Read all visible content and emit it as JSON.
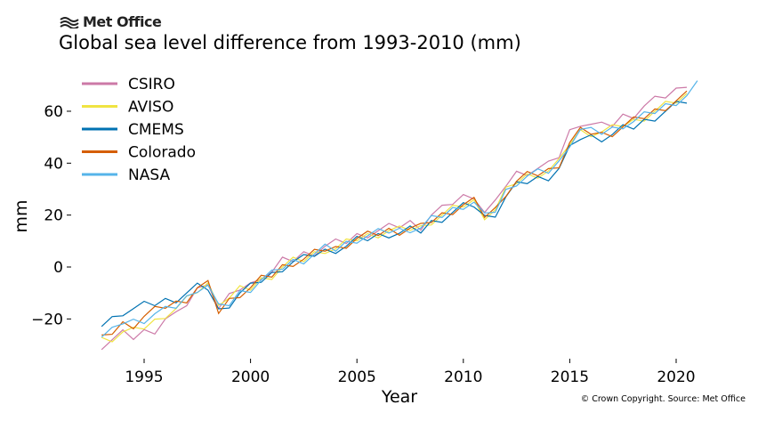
{
  "header": {
    "brand": "Met Office",
    "title": "Global sea level difference from 1993-2010 (mm)"
  },
  "footer": {
    "copyright": "© Crown Copyright. Source: Met Office"
  },
  "chart_data": {
    "type": "line",
    "title": "Global sea level difference from 1993-2010 (mm)",
    "xlabel": "Year",
    "ylabel": "mm",
    "xlim": [
      1992.5,
      2022
    ],
    "ylim": [
      -35,
      75
    ],
    "xticks": [
      "1995",
      "2000",
      "2005",
      "2010",
      "2015",
      "2020"
    ],
    "yticks": [
      "−20",
      "0",
      "20",
      "40",
      "60"
    ],
    "grid": false,
    "legend": "top-left",
    "x_start": 1993,
    "x_step": 0.5,
    "series": [
      {
        "name": "CSIRO",
        "color": "#cc79a7",
        "values": [
          -30,
          -28,
          -26,
          -27,
          -25,
          -24,
          -20,
          -19,
          -14,
          -9,
          -5,
          -16,
          -12,
          -8,
          -7,
          -3,
          -2,
          2,
          3,
          5,
          6,
          8,
          9,
          10,
          12,
          13,
          14,
          15,
          16,
          17,
          16,
          20,
          22,
          25,
          27,
          28,
          21,
          24,
          32,
          36,
          37,
          38,
          39,
          43,
          52,
          56,
          55,
          54,
          55,
          58,
          59,
          62,
          64,
          66,
          68,
          71
        ]
      },
      {
        "name": "AVISO",
        "color": "#f0e442",
        "values": [
          -28,
          -27,
          -25,
          -25,
          -23,
          -21,
          -18,
          -16,
          -13,
          -9,
          -7,
          -13,
          -12,
          -9,
          -8,
          -5,
          -3,
          0,
          2,
          3,
          5,
          7,
          7,
          9,
          11,
          12,
          13,
          14,
          14,
          15,
          15,
          18,
          20,
          22,
          24,
          25,
          20,
          22,
          29,
          33,
          35,
          36,
          37,
          40,
          48,
          52,
          52,
          52,
          53,
          55,
          56,
          58,
          60,
          62,
          64,
          66
        ]
      },
      {
        "name": "CMEMS",
        "color": "#0072b2",
        "values": [
          -22,
          -20,
          -17,
          -16,
          -15,
          -14,
          -13,
          -12,
          -10,
          -8,
          -8,
          -17,
          -14,
          -10,
          -8,
          -5,
          -3,
          0,
          2,
          3,
          5,
          6,
          7,
          8,
          10,
          11,
          12,
          13,
          13,
          14,
          14,
          17,
          19,
          21,
          23,
          24,
          19,
          21,
          27,
          31,
          33,
          34,
          35,
          38,
          45,
          50,
          50,
          50,
          51,
          53,
          54,
          56,
          58,
          60,
          62,
          64
        ]
      },
      {
        "name": "Colorado",
        "color": "#d55e00",
        "values": [
          -28,
          -25,
          -22,
          -22,
          -19,
          -17,
          -15,
          -14,
          -12,
          -8,
          -7,
          -17,
          -13,
          -10,
          -8,
          -5,
          -3,
          0,
          2,
          3,
          5,
          7,
          7,
          9,
          11,
          12,
          13,
          14,
          14,
          15,
          15,
          18,
          20,
          22,
          24,
          25,
          20,
          22,
          29,
          33,
          35,
          36,
          37,
          40,
          48,
          52,
          52,
          51,
          52,
          54,
          56,
          58,
          60,
          62,
          64,
          66
        ]
      },
      {
        "name": "NASA",
        "color": "#56b4e9",
        "values": [
          -27,
          -25,
          -21,
          -21,
          -20,
          -18,
          -17,
          -15,
          -12,
          -8,
          -7,
          -16,
          -14,
          -10,
          -8,
          -5,
          -3,
          0,
          2,
          3,
          5,
          7,
          7,
          9,
          11,
          12,
          13,
          14,
          14,
          15,
          15,
          18,
          20,
          22,
          24,
          25,
          19,
          22,
          29,
          33,
          35,
          36,
          37,
          40,
          48,
          53,
          52,
          52,
          53,
          55,
          56,
          58,
          60,
          62,
          64,
          66,
          70
        ]
      }
    ]
  }
}
